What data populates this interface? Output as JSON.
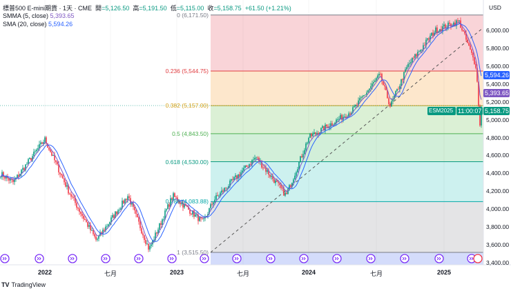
{
  "header": {
    "symbol": "標普500 E-mini期貨 · 1天 · CME",
    "open_label": "開",
    "open": "=5,126.50",
    "high_label": "高",
    "high": "=5,191.50",
    "low_label": "低",
    "low": "=5,115.00",
    "close_label": "收",
    "close": "=5,158.75",
    "change": "+61.50 (+1.21%)"
  },
  "indicators": [
    {
      "name": "SMMA (5, close)",
      "value": "5,393.65",
      "color": "#7e57c2"
    },
    {
      "name": "SMA (20, close)",
      "value": "5,594.26",
      "color": "#2962ff"
    }
  ],
  "currency": "USD",
  "price_axis": [
    "6,000.00",
    "5,800.00",
    "5,600.00",
    "5,400.00",
    "5,200.00",
    "5,000.00",
    "4,800.00",
    "4,600.00",
    "4,400.00",
    "4,200.00",
    "4,000.00",
    "3,800.00",
    "3,600.00",
    "3,400.00"
  ],
  "tags": {
    "sma": "5,594.26",
    "smma": "5,393.65",
    "last": "5,158.75",
    "countdown": "11:00:07",
    "ticker": "ESM2025"
  },
  "time_axis": [
    {
      "label": "2022",
      "year": true
    },
    {
      "label": "七月"
    },
    {
      "label": "2023",
      "year": true
    },
    {
      "label": "七月"
    },
    {
      "label": "2024",
      "year": true
    },
    {
      "label": "七月"
    },
    {
      "label": "2025",
      "year": true
    }
  ],
  "fib": [
    {
      "label": "0 (6,171.50)",
      "level": 0,
      "price": 6171.5,
      "color": "#787b86",
      "fill": "#f9d4d8"
    },
    {
      "label": "0.236 (5,544.75)",
      "level": 0.236,
      "price": 5544.75,
      "color": "#e03a3e",
      "fill": "#fde7cc"
    },
    {
      "label": "0.382 (5,157.00)",
      "level": 0.382,
      "price": 5157,
      "color": "#d4a017",
      "fill": "#dbf0d5"
    },
    {
      "label": "0.5 (4,843.50)",
      "level": 0.5,
      "price": 4843.5,
      "color": "#4caf50",
      "fill": "#d2efd9"
    },
    {
      "label": "0.618 (4,530.00)",
      "level": 0.618,
      "price": 4530,
      "color": "#089981",
      "fill": "#cdf1ef"
    },
    {
      "label": "0.786 (4,083.88)",
      "level": 0.786,
      "price": 4083.88,
      "color": "#00a6a6",
      "fill": "#e4e4e6"
    },
    {
      "label": "1 (3,515.50)",
      "level": 1,
      "price": 3515.5,
      "color": "#787b86",
      "fill": "#d4dcfb"
    }
  ],
  "branding": "TradingView",
  "colors": {
    "up": "#089981",
    "down": "#f23645",
    "sma": "#2962ff",
    "smma": "#7e57c2"
  },
  "chart_data": {
    "type": "candlestick",
    "ylim": [
      3400,
      6230
    ],
    "anchors": [
      [
        2021.66,
        4400
      ],
      [
        2021.76,
        4300
      ],
      [
        2022.0,
        4780
      ],
      [
        2022.18,
        4200
      ],
      [
        2022.39,
        3650
      ],
      [
        2022.63,
        4150
      ],
      [
        2022.79,
        3550
      ],
      [
        2022.97,
        4150
      ],
      [
        2023.2,
        3850
      ],
      [
        2023.28,
        4100
      ],
      [
        2023.6,
        4580
      ],
      [
        2023.83,
        4150
      ],
      [
        2024.0,
        4800
      ],
      [
        2024.33,
        5100
      ],
      [
        2024.54,
        5500
      ],
      [
        2024.62,
        5150
      ],
      [
        2024.75,
        5600
      ],
      [
        2024.96,
        6000
      ],
      [
        2025.14,
        6100
      ],
      [
        2025.27,
        5600
      ],
      [
        2025.3,
        4900
      ],
      [
        2025.31,
        5158.75
      ]
    ]
  }
}
